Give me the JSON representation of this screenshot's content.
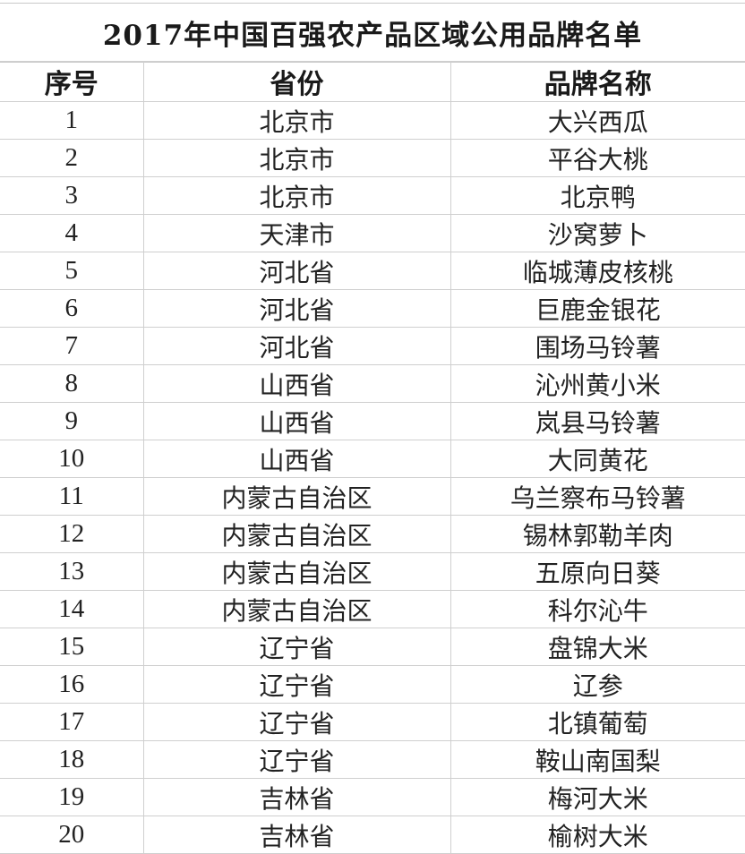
{
  "title": "2017年中国百强农产品区域公用品牌名单",
  "headers": [
    "序号",
    "省份",
    "品牌名称"
  ],
  "rows": [
    [
      "1",
      "北京市",
      "大兴西瓜"
    ],
    [
      "2",
      "北京市",
      "平谷大桃"
    ],
    [
      "3",
      "北京市",
      "北京鸭"
    ],
    [
      "4",
      "天津市",
      "沙窝萝卜"
    ],
    [
      "5",
      "河北省",
      "临城薄皮核桃"
    ],
    [
      "6",
      "河北省",
      "巨鹿金银花"
    ],
    [
      "7",
      "河北省",
      "围场马铃薯"
    ],
    [
      "8",
      "山西省",
      "沁州黄小米"
    ],
    [
      "9",
      "山西省",
      "岚县马铃薯"
    ],
    [
      "10",
      "山西省",
      "大同黄花"
    ],
    [
      "11",
      "内蒙古自治区",
      "乌兰察布马铃薯"
    ],
    [
      "12",
      "内蒙古自治区",
      "锡林郭勒羊肉"
    ],
    [
      "13",
      "内蒙古自治区",
      "五原向日葵"
    ],
    [
      "14",
      "内蒙古自治区",
      "科尔沁牛"
    ],
    [
      "15",
      "辽宁省",
      "盘锦大米"
    ],
    [
      "16",
      "辽宁省",
      "辽参"
    ],
    [
      "17",
      "辽宁省",
      "北镇葡萄"
    ],
    [
      "18",
      "辽宁省",
      "鞍山南国梨"
    ],
    [
      "19",
      "吉林省",
      "梅河大米"
    ],
    [
      "20",
      "吉林省",
      "榆树大米"
    ]
  ]
}
